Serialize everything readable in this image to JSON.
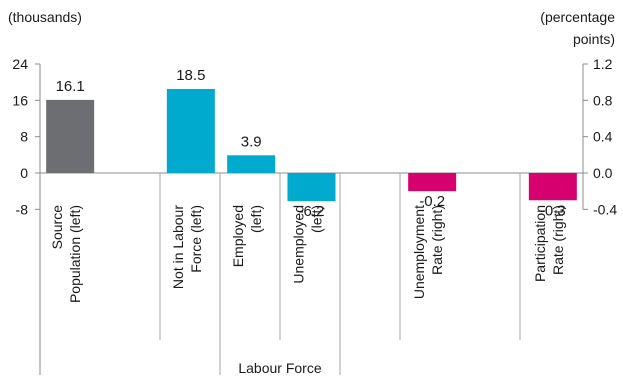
{
  "chart_data": {
    "type": "bar",
    "left_axis": {
      "unit_label": "(thousands)",
      "range": [
        -8,
        24
      ],
      "ticks": [
        24,
        16,
        8,
        0,
        -8
      ],
      "tick_labels": [
        "24",
        "16",
        "8",
        "0",
        "-8"
      ]
    },
    "right_axis": {
      "unit_label_lines": [
        "(percentage",
        "points)"
      ],
      "range": [
        -0.4,
        1.2
      ],
      "ticks": [
        1.2,
        0.8,
        0.4,
        0.0,
        -0.4
      ],
      "tick_labels": [
        "1.2",
        "0.8",
        "0.4",
        "0.0",
        "-0.4"
      ]
    },
    "categories": [
      {
        "lines": [
          "Source",
          "Population (left)"
        ],
        "value": 16.1,
        "label": "16.1",
        "axis": "left",
        "color": "#6d6e71"
      },
      {
        "lines": [
          "Not in Labour",
          "Force (left)"
        ],
        "value": 18.5,
        "label": "18.5",
        "axis": "left",
        "color": "#00a9ce"
      },
      {
        "lines": [
          "Employed",
          "(left)"
        ],
        "value": 3.9,
        "label": "3.9",
        "axis": "left",
        "color": "#00a9ce"
      },
      {
        "lines": [
          "Unemployed",
          "(left)"
        ],
        "value": -6.2,
        "label": "-6.2",
        "axis": "left",
        "color": "#00a9ce"
      },
      {
        "lines": [
          "Unemployment",
          "Rate (right)"
        ],
        "value": -0.2,
        "label": "-0.2",
        "axis": "right",
        "color": "#d6006e"
      },
      {
        "lines": [
          "Participation",
          "Rate (right)"
        ],
        "value": -0.3,
        "label": "-0.3",
        "axis": "right",
        "color": "#d6006e"
      }
    ],
    "group_label": "Labour Force",
    "grid": false
  }
}
